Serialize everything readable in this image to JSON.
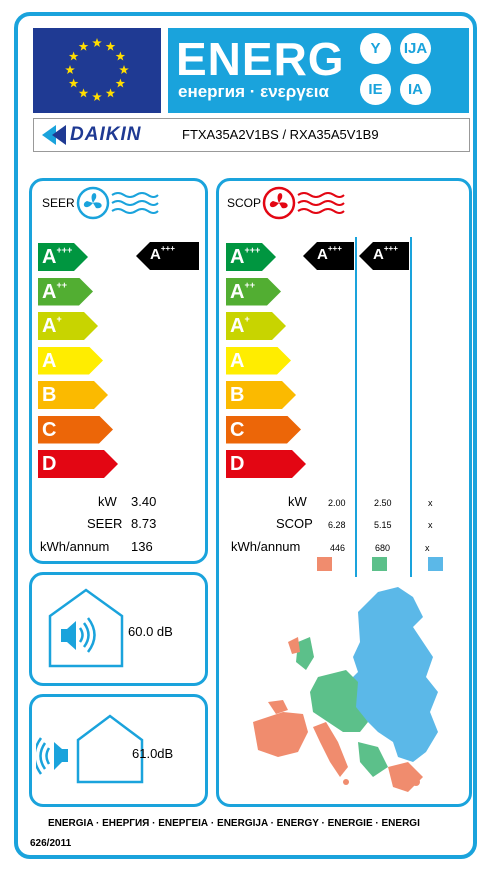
{
  "header": {
    "energy_word": "ENERG",
    "energy_sub": "енергия · ενεργεια",
    "lang_codes": [
      "Y",
      "IJA",
      "IE",
      "IA"
    ]
  },
  "brand": {
    "name": "DAIKIN",
    "model": "FTXA35A2V1BS / RXA35A5V1B9"
  },
  "cooling": {
    "label": "SEER",
    "class_letter": "A",
    "class_plus": "+++",
    "scale": [
      {
        "letter": "A",
        "plus": "+++",
        "color": "#009640"
      },
      {
        "letter": "A",
        "plus": "++",
        "color": "#52ae32"
      },
      {
        "letter": "A",
        "plus": "+",
        "color": "#c8d400"
      },
      {
        "letter": "A",
        "plus": "",
        "color": "#ffed00"
      },
      {
        "letter": "B",
        "plus": "",
        "color": "#fbba00"
      },
      {
        "letter": "C",
        "plus": "",
        "color": "#ec6608"
      },
      {
        "letter": "D",
        "plus": "",
        "color": "#e30613"
      }
    ],
    "rows": [
      {
        "label": "kW",
        "value": "3.40"
      },
      {
        "label": "SEER",
        "value": "8.73"
      },
      {
        "label": "kWh/annum",
        "value": "136"
      }
    ]
  },
  "heating": {
    "label": "SCOP",
    "class_letter": "A",
    "class_plus": "+++",
    "rows": [
      {
        "label": "kW",
        "warm": "2.00",
        "avg": "2.50",
        "cold": "x"
      },
      {
        "label": "SCOP",
        "warm": "6.28",
        "avg": "5.15",
        "cold": "x"
      },
      {
        "label": "kWh/annum",
        "warm": "446",
        "avg": "680",
        "cold": "x"
      }
    ],
    "zone_colors": {
      "warm": "#f08c6e",
      "average": "#5cc08a",
      "cold": "#5bb8e8"
    }
  },
  "noise": {
    "indoor": "60.0 dB",
    "outdoor": "61.0dB"
  },
  "footer": {
    "languages": "ENERGIA · ЕНЕРГИЯ · ΕΝΕΡΓΕΙΑ · ENERGIJA · ENERGY · ENERGIE · ENERGI",
    "regulation": "626/2011"
  }
}
